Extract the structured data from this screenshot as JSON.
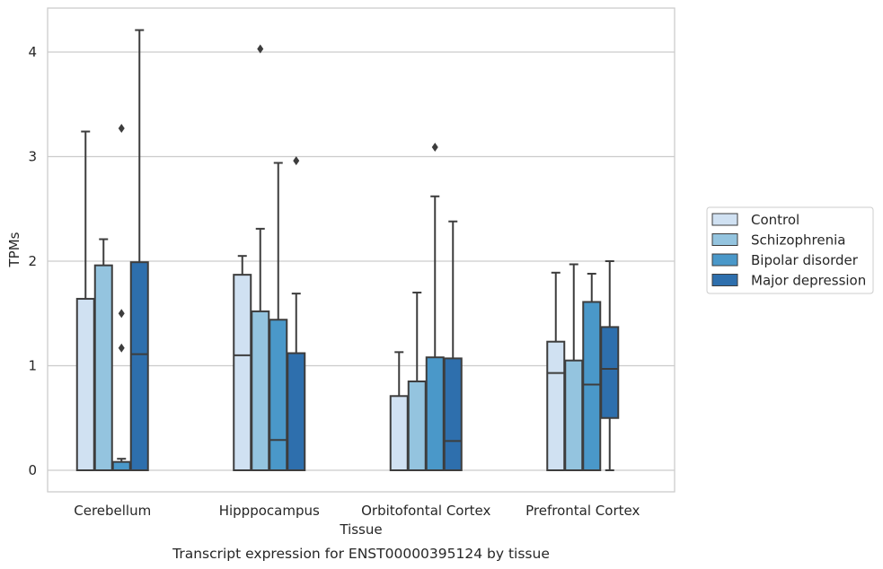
{
  "caption": "Transcript expression for ENST00000395124 by tissue",
  "chart_data": {
    "type": "boxplot",
    "xlabel": "Tissue",
    "ylabel": "TPMs",
    "ylim": [
      -0.2,
      4.3
    ],
    "yticks": [
      0,
      1,
      2,
      3,
      4
    ],
    "grid": "horizontal",
    "legend_position": "right",
    "categories": [
      "Cerebellum",
      "Hipppocampus",
      "Orbitofontal Cortex",
      "Prefrontal Cortex"
    ],
    "series": [
      {
        "name": "Control",
        "color": "#d0e1f2",
        "boxes": [
          {
            "q1": 0,
            "median": 0,
            "q3": 1.64,
            "whisker_low": 0,
            "whisker_high": 3.24,
            "outliers": []
          },
          {
            "q1": 0,
            "median": 1.1,
            "q3": 1.87,
            "whisker_low": 0,
            "whisker_high": 2.05,
            "outliers": []
          },
          {
            "q1": 0,
            "median": 0,
            "q3": 0.71,
            "whisker_low": 0,
            "whisker_high": 1.13,
            "outliers": []
          },
          {
            "q1": 0,
            "median": 0.93,
            "q3": 1.23,
            "whisker_low": 0,
            "whisker_high": 1.89,
            "outliers": []
          }
        ]
      },
      {
        "name": "Schizophrenia",
        "color": "#94c4df",
        "boxes": [
          {
            "q1": 0,
            "median": 0,
            "q3": 1.96,
            "whisker_low": 0,
            "whisker_high": 2.21,
            "outliers": []
          },
          {
            "q1": 0,
            "median": 0,
            "q3": 1.52,
            "whisker_low": 0,
            "whisker_high": 2.31,
            "outliers": [
              4.03
            ]
          },
          {
            "q1": 0,
            "median": 0,
            "q3": 0.85,
            "whisker_low": 0,
            "whisker_high": 1.7,
            "outliers": []
          },
          {
            "q1": 0,
            "median": 0,
            "q3": 1.05,
            "whisker_low": 0,
            "whisker_high": 1.97,
            "outliers": []
          }
        ]
      },
      {
        "name": "Bipolar disorder",
        "color": "#4a98c9",
        "boxes": [
          {
            "q1": 0,
            "median": 0,
            "q3": 0.08,
            "whisker_low": 0,
            "whisker_high": 0.11,
            "outliers": [
              1.17,
              1.5,
              3.27
            ]
          },
          {
            "q1": 0,
            "median": 0.29,
            "q3": 1.44,
            "whisker_low": 0,
            "whisker_high": 2.94,
            "outliers": []
          },
          {
            "q1": 0,
            "median": 0,
            "q3": 1.08,
            "whisker_low": 0,
            "whisker_high": 2.62,
            "outliers": [
              3.09
            ]
          },
          {
            "q1": 0,
            "median": 0.82,
            "q3": 1.61,
            "whisker_low": 0,
            "whisker_high": 1.88,
            "outliers": []
          }
        ]
      },
      {
        "name": "Major depression",
        "color": "#2e6fad",
        "boxes": [
          {
            "q1": 0,
            "median": 1.11,
            "q3": 1.99,
            "whisker_low": 0,
            "whisker_high": 4.21,
            "outliers": []
          },
          {
            "q1": 0,
            "median": 0,
            "q3": 1.12,
            "whisker_low": 0,
            "whisker_high": 1.69,
            "outliers": [
              2.96
            ]
          },
          {
            "q1": 0,
            "median": 0.28,
            "q3": 1.07,
            "whisker_low": 0,
            "whisker_high": 2.38,
            "outliers": []
          },
          {
            "q1": 0.5,
            "median": 0.97,
            "q3": 1.37,
            "whisker_low": 0,
            "whisker_high": 2.0,
            "outliers": []
          }
        ]
      }
    ]
  }
}
